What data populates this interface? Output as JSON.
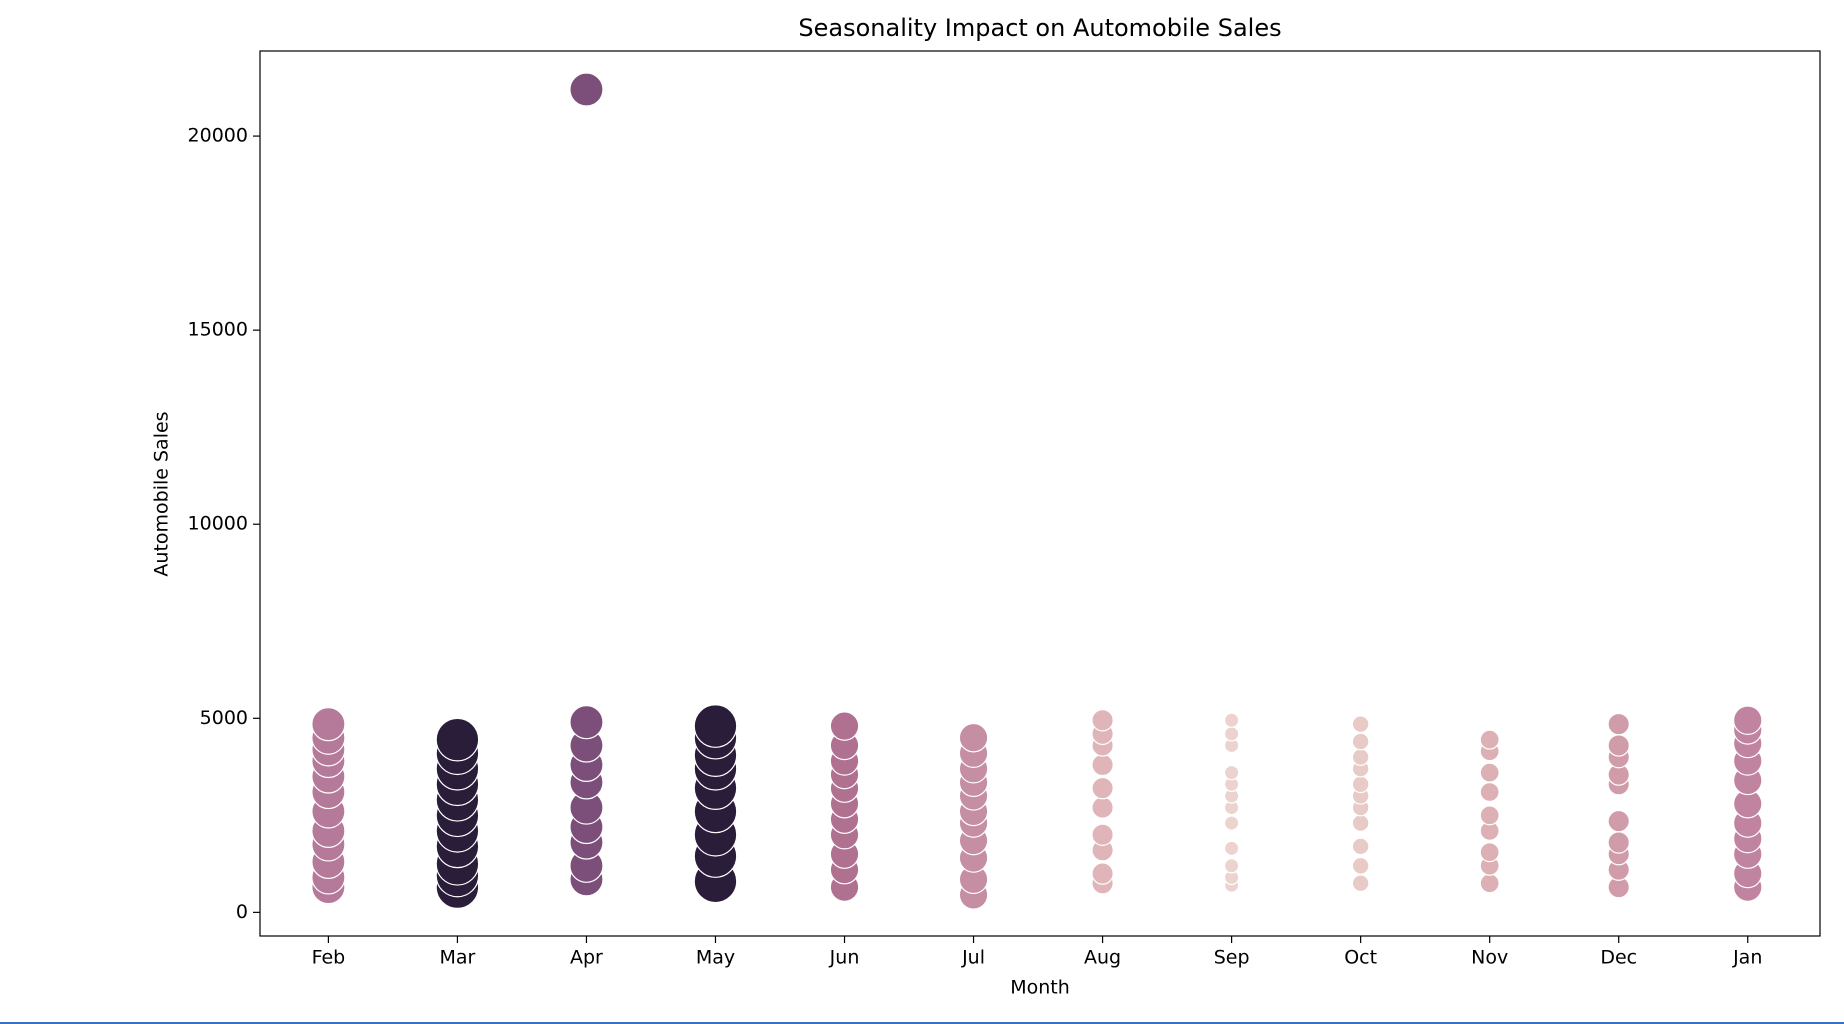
{
  "chart_data": {
    "type": "scatter",
    "title": "Seasonality Impact on Automobile Sales",
    "x_label": "Month",
    "y_label": "Automobile Sales",
    "ylim": [
      -609,
      22192
    ],
    "yticks": [
      0,
      5000,
      10000,
      15000,
      20000
    ],
    "groups": [
      {
        "category": "Feb",
        "color": "#b5799a",
        "size": 14,
        "values": [
          650,
          900,
          1300,
          1750,
          2100,
          2600,
          3100,
          3500,
          3900,
          4200,
          4500,
          4850
        ]
      },
      {
        "category": "Mar",
        "color": "#2a1d3a",
        "size": 18,
        "values": [
          650,
          950,
          1250,
          1700,
          2100,
          2500,
          2900,
          3300,
          3700,
          4100,
          4450
        ]
      },
      {
        "category": "Apr",
        "color": "#7c4f7a",
        "size": 14,
        "values": [
          850,
          1200,
          1800,
          2200,
          2700,
          3350,
          3800,
          4300,
          4900,
          21200
        ]
      },
      {
        "category": "May",
        "color": "#2a1d3a",
        "size": 18,
        "values": [
          800,
          1450,
          2000,
          2600,
          3200,
          3700,
          4050,
          4500,
          4800
        ]
      },
      {
        "category": "Jun",
        "color": "#b0708f",
        "size": 12,
        "values": [
          650,
          1100,
          1500,
          2000,
          2400,
          2800,
          3200,
          3550,
          3900,
          4300,
          4800
        ]
      },
      {
        "category": "Jul",
        "color": "#c58ea3",
        "size": 12,
        "values": [
          450,
          850,
          1400,
          1850,
          2300,
          2600,
          3000,
          3350,
          3700,
          4100,
          4500
        ]
      },
      {
        "category": "Aug",
        "color": "#dfb5b9",
        "size": 9,
        "values": [
          750,
          1000,
          1600,
          2000,
          2700,
          3200,
          3800,
          4300,
          4600,
          4950
        ]
      },
      {
        "category": "Sep",
        "color": "#ecd3cf",
        "size": 6,
        "values": [
          700,
          900,
          1200,
          1650,
          2300,
          2700,
          3000,
          3300,
          3600,
          4300,
          4600,
          4950
        ]
      },
      {
        "category": "Oct",
        "color": "#e8cac7",
        "size": 7,
        "values": [
          750,
          1200,
          1700,
          2300,
          2700,
          3000,
          3300,
          3700,
          4000,
          4400,
          4850
        ]
      },
      {
        "category": "Nov",
        "color": "#dcb0b5",
        "size": 8,
        "values": [
          750,
          1200,
          1550,
          2100,
          2500,
          3100,
          3600,
          4150,
          4450
        ]
      },
      {
        "category": "Dec",
        "color": "#d09ca9",
        "size": 9,
        "values": [
          650,
          1100,
          1500,
          1800,
          2350,
          3300,
          3550,
          4000,
          4300,
          4850
        ]
      },
      {
        "category": "Jan",
        "color": "#c084a0",
        "size": 12,
        "values": [
          650,
          1000,
          1500,
          1900,
          2300,
          2800,
          3400,
          3900,
          4350,
          4700,
          4950
        ]
      }
    ]
  }
}
